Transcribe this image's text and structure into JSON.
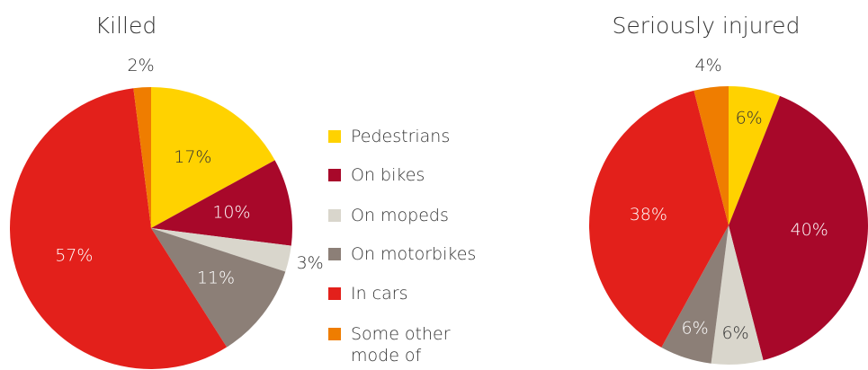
{
  "chart_data": [
    {
      "type": "pie",
      "title": "Killed",
      "categories": [
        "Pedestrians",
        "On bikes",
        "On mopeds",
        "On motorbikes",
        "In cars",
        "Some other mode of transport"
      ],
      "values": [
        17,
        10,
        3,
        11,
        57,
        2
      ],
      "value_labels": [
        "17%",
        "10%",
        "3%",
        "11%",
        "57%",
        "2%"
      ],
      "colors": [
        "#ffd200",
        "#a8082a",
        "#d9d6cc",
        "#8c7f77",
        "#e3201b",
        "#ef7d00"
      ]
    },
    {
      "type": "pie",
      "title": "Seriously injured",
      "categories": [
        "Pedestrians",
        "On bikes",
        "On mopeds",
        "On motorbikes",
        "In cars",
        "Some other mode of transport"
      ],
      "values": [
        6,
        40,
        6,
        6,
        38,
        4
      ],
      "value_labels": [
        "6%",
        "40%",
        "6%",
        "6%",
        "38%",
        "4%"
      ],
      "colors": [
        "#ffd200",
        "#a8082a",
        "#d9d6cc",
        "#8c7f77",
        "#e3201b",
        "#ef7d00"
      ]
    }
  ]
}
